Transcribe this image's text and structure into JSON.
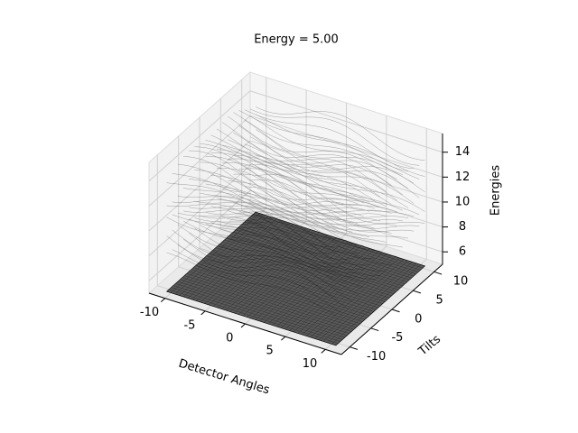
{
  "chart_data": {
    "type": "surface3d",
    "title": "Energy = 5.00",
    "xlabel": "Detector Angles",
    "ylabel": "Tilts",
    "zlabel": "Energies",
    "xlim": [
      -12,
      12
    ],
    "ylim": [
      -12,
      12
    ],
    "zlim": [
      5,
      15.5
    ],
    "xticks": [
      -10,
      -5,
      0,
      5,
      10
    ],
    "yticks": [
      -10,
      -5,
      0,
      5,
      10
    ],
    "zticks": [
      6,
      8,
      10,
      12,
      14
    ],
    "slice_energy": 5,
    "color": "#000000",
    "grid": true
  }
}
